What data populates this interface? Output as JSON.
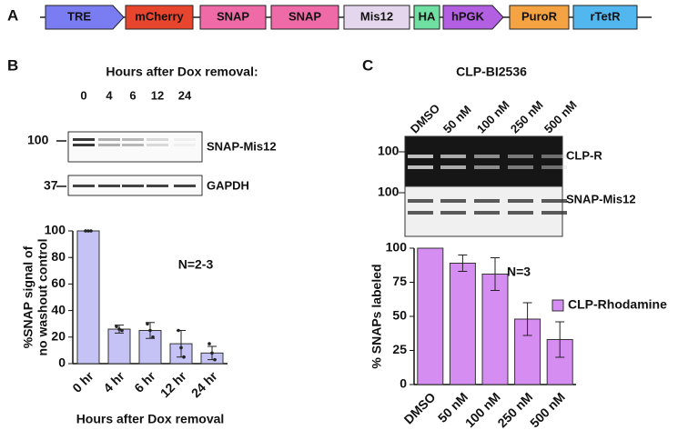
{
  "panel_labels": [
    "A",
    "B",
    "C"
  ],
  "construct": [
    "TRE",
    "mCherry",
    "SNAP",
    "SNAP",
    "Mis12",
    "HA",
    "hPGK",
    "PuroR",
    "rTetR"
  ],
  "blot_b": {
    "title": "Hours after Dox removal:",
    "lanes": [
      "0",
      "4",
      "6",
      "12",
      "24"
    ],
    "markers": [
      "100",
      "37"
    ],
    "bands": [
      "SNAP-Mis12",
      "GAPDH"
    ]
  },
  "blot_c": {
    "title": "CLP-BI2536",
    "markers": [
      "100",
      "100"
    ],
    "bands": [
      "CLP-R",
      "SNAP-Mis12"
    ]
  },
  "chart_data": [
    {
      "type": "bar",
      "ylabel": [
        "%SNAP signal of",
        "no washout control"
      ],
      "xlabel": "Hours after Dox removal",
      "annotation": "N=2-3",
      "categories": [
        "0 hr",
        "4 hr",
        "6 hr",
        "12 hr",
        "24 hr"
      ],
      "values": [
        100,
        26,
        25,
        15,
        8
      ],
      "errors": [
        0,
        3,
        6,
        10,
        5
      ],
      "points": [
        [
          100,
          100,
          100
        ],
        [
          28,
          26,
          25
        ],
        [
          30,
          25,
          20
        ],
        [
          25,
          12,
          5
        ],
        [
          15,
          8,
          3
        ]
      ],
      "color": "#c5c3f6",
      "ylim": [
        0,
        100
      ],
      "yticks": [
        0,
        20,
        40,
        60,
        80,
        100
      ]
    },
    {
      "type": "bar",
      "ylabel": "% SNAPs labeled",
      "annotation": "N=3",
      "categories": [
        "DMSO",
        "50 nM",
        "100 nM",
        "250 nM",
        "500 nM"
      ],
      "series": [
        {
          "name": "CLP-Rhodamine",
          "color": "#d68df2",
          "values": [
            100,
            89,
            81,
            48,
            33
          ],
          "errors": [
            0,
            6,
            12,
            12,
            13
          ]
        }
      ],
      "ylim": [
        0,
        100
      ],
      "yticks": [
        0,
        25,
        50,
        75,
        100
      ],
      "legend": "right"
    }
  ]
}
